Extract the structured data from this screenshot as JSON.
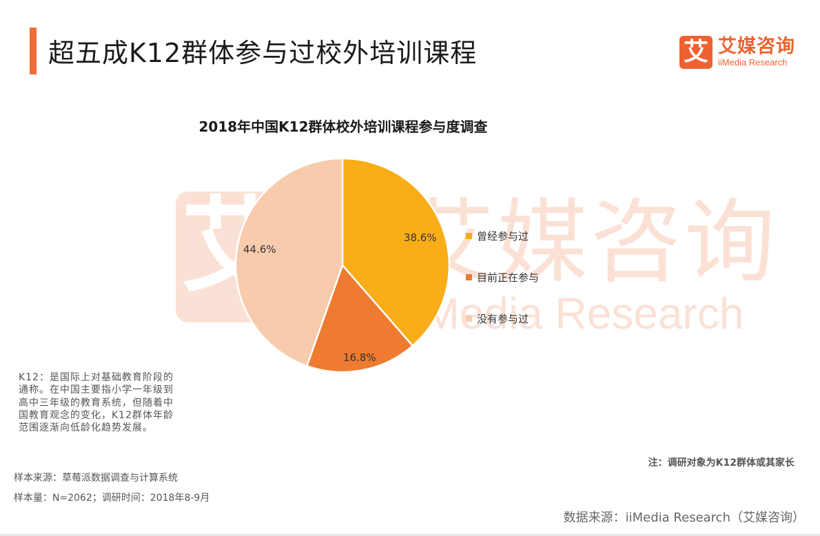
{
  "header": {
    "title": "超五成K12群体参与过校外培训课程",
    "accent_color": "#f26a35"
  },
  "logo": {
    "mark_glyph": "艾",
    "name_cn": "艾媒咨询",
    "name_en": "iiMedia Research",
    "color": "#ee6231"
  },
  "watermark": {
    "glyph": "艾",
    "cn": "艾媒咨询",
    "en": "iiMedia Research"
  },
  "chart_data": {
    "type": "pie",
    "title": "2018年中国K12群体校外培训课程参与度调查",
    "categories": [
      "曾经参与过",
      "目前正在参与",
      "没有参与过"
    ],
    "values": [
      38.6,
      16.8,
      44.6
    ],
    "labels": [
      "38.6%",
      "16.8%",
      "44.6%"
    ],
    "colors": [
      "#f9ad17",
      "#ee7b30",
      "#f8cbad"
    ],
    "start_angle": "12 o'clock",
    "direction": "clockwise",
    "legend_position": "right",
    "unit": "%"
  },
  "notes": {
    "k12_definition": "K12：是国际上对基础教育阶段的通称。在中国主要指小学一年级到高中三年级的教育系统，但随着中国教育观念的变化，K12群体年龄范围逐渐向低龄化趋势发展。",
    "sample_source": "样本来源：草莓派数据调查与计算系统",
    "sample_size": "样本量：N=2062；调研时间：2018年8-9月",
    "survey_subject": "注：调研对象为K12群体或其家长",
    "data_source": "数据来源：iiMedia Research（艾媒咨询）"
  }
}
